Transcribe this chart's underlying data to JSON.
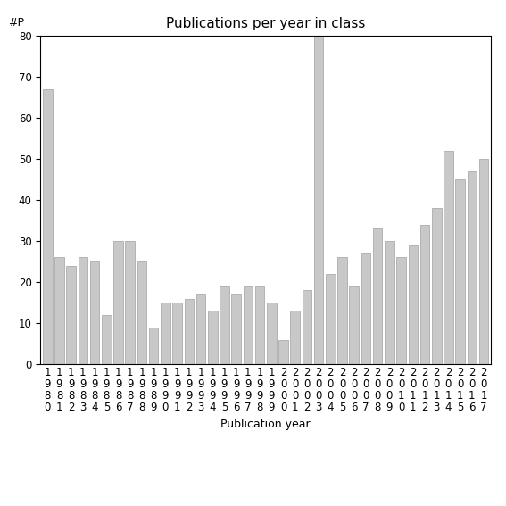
{
  "title": "Publications per year in class",
  "xlabel": "Publication year",
  "ylabel": "#P",
  "years": [
    "1980",
    "1981",
    "1982",
    "1983",
    "1984",
    "1985",
    "1986",
    "1987",
    "1988",
    "1989",
    "1990",
    "1991",
    "1992",
    "1993",
    "1994",
    "1995",
    "1996",
    "1997",
    "1998",
    "1999",
    "2000",
    "2001",
    "2002",
    "2003",
    "2004",
    "2005",
    "2006",
    "2007",
    "2008",
    "2009",
    "2010",
    "2011",
    "2012",
    "2013",
    "2014",
    "2015",
    "2016",
    "2017"
  ],
  "values": [
    67,
    26,
    24,
    26,
    25,
    12,
    30,
    30,
    25,
    9,
    15,
    15,
    16,
    17,
    13,
    19,
    17,
    19,
    19,
    15,
    6,
    13,
    18,
    80,
    22,
    26,
    19,
    27,
    33,
    30,
    26,
    29,
    34,
    38,
    52,
    45,
    47,
    50
  ],
  "bar_color": "#c8c8c8",
  "bar_edgecolor": "#a0a0a0",
  "ylim": [
    0,
    80
  ],
  "yticks": [
    0,
    10,
    20,
    30,
    40,
    50,
    60,
    70,
    80
  ],
  "background_color": "#ffffff",
  "title_fontsize": 11,
  "axis_label_fontsize": 9,
  "tick_fontsize": 8.5
}
